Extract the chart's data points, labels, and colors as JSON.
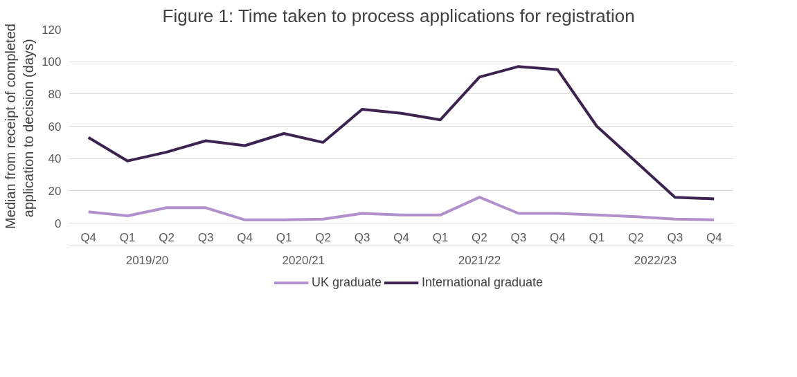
{
  "chart_data": {
    "type": "line",
    "title": "Figure 1: Time taken to process applications  for registration",
    "ylabel": "Median from receipt of completed\napplication to decision  (days)",
    "categories": [
      "Q4",
      "Q1",
      "Q2",
      "Q3",
      "Q4",
      "Q1",
      "Q2",
      "Q3",
      "Q4",
      "Q1",
      "Q2",
      "Q3",
      "Q4",
      "Q1",
      "Q2",
      "Q3",
      "Q4"
    ],
    "annotations": [
      "2019/20",
      "2020/21",
      "2021/22",
      "2022/23"
    ],
    "series": [
      {
        "name": "UK graduate",
        "color": "#b190cc",
        "values": [
          7,
          4.5,
          9.5,
          9.5,
          2,
          2,
          2.5,
          6,
          5,
          5,
          16,
          6,
          6,
          5,
          4,
          2.5,
          2
        ]
      },
      {
        "name": "International graduate",
        "color": "#3d2350",
        "values": [
          53,
          38.5,
          44,
          51,
          48,
          55.5,
          50,
          70.5,
          68,
          64,
          90.5,
          97,
          95,
          60,
          38,
          16,
          15
        ]
      }
    ],
    "ylim": [
      0,
      120
    ],
    "yticks": [
      0,
      20,
      40,
      60,
      80,
      100,
      120
    ],
    "grid": "y",
    "legend": "bottom",
    "line_style": "solid",
    "marker": "none"
  }
}
